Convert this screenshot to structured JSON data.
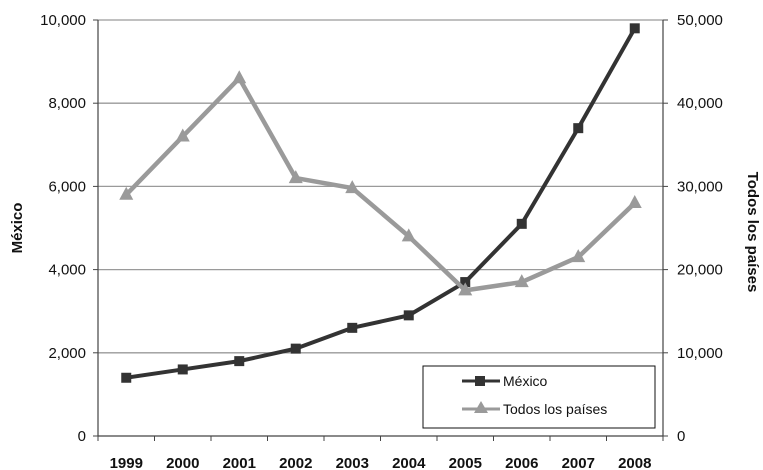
{
  "chart_data": {
    "type": "line",
    "categories": [
      "1999",
      "2000",
      "2001",
      "2002",
      "2003",
      "2004",
      "2005",
      "2006",
      "2007",
      "2008"
    ],
    "series": [
      {
        "name": "México",
        "axis": "left",
        "values": [
          1400,
          1600,
          1800,
          2100,
          2600,
          2900,
          3700,
          5100,
          7400,
          9800
        ],
        "color": "#333333",
        "marker": "square"
      },
      {
        "name": "Todos los países",
        "axis": "right",
        "values": [
          29000,
          36000,
          43000,
          31000,
          29800,
          24000,
          17500,
          18500,
          21500,
          28000
        ],
        "color": "#9a9a9a",
        "marker": "triangle"
      }
    ],
    "left_axis": {
      "label": "México",
      "min": 0,
      "max": 10000,
      "ticks": [
        "0",
        "2,000",
        "4,000",
        "6,000",
        "8,000",
        "10,000"
      ]
    },
    "right_axis": {
      "label": "Todos los países",
      "min": 0,
      "max": 50000,
      "ticks": [
        "0",
        "10,000",
        "20,000",
        "30,000",
        "40,000",
        "50,000"
      ]
    },
    "grid": true,
    "legend_position": "bottom-right"
  }
}
